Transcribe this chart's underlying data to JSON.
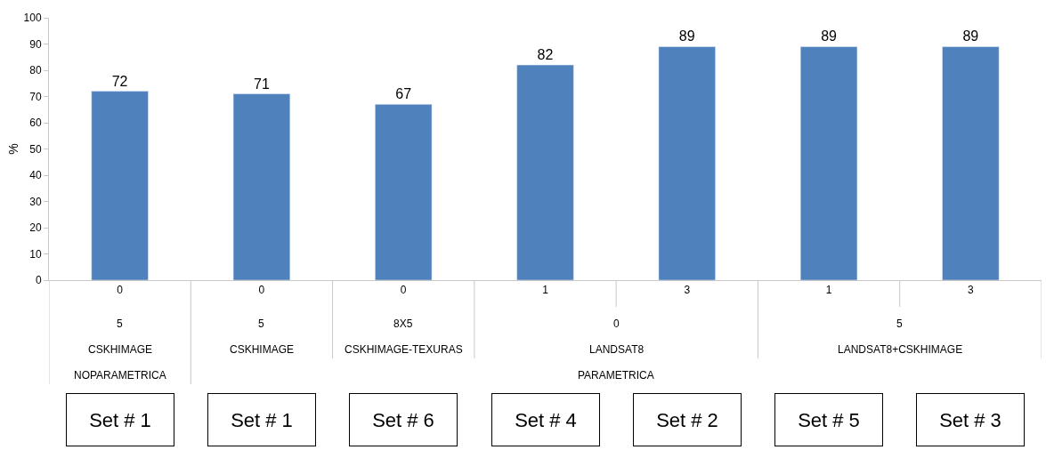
{
  "chart_data": {
    "type": "bar",
    "ylabel": "%",
    "categories": [
      "0",
      "0",
      "0",
      "1",
      "3",
      "1",
      "3"
    ],
    "values": [
      72,
      71,
      67,
      82,
      89,
      89,
      89
    ],
    "color": "#4f81bd",
    "data_labels": true,
    "ylim": [
      0,
      100
    ],
    "yticks": [
      0,
      10,
      20,
      30,
      40,
      50,
      60,
      70,
      80,
      90,
      100
    ],
    "legend": false,
    "annotations": [
      "5",
      "5",
      "8X5",
      "0",
      "5",
      "CSKHIMAGE",
      "CSKHIMAGE",
      "CSKHIMAGE-TEXURAS",
      "LANDSAT8",
      "LANDSAT8+CSKHIMAGE",
      "NOPARAMETRICA",
      "PARAMETRICA",
      "Set # 1",
      "Set # 1",
      "Set # 6",
      "Set # 4",
      "Set # 2",
      "Set # 5",
      "Set # 3"
    ]
  }
}
